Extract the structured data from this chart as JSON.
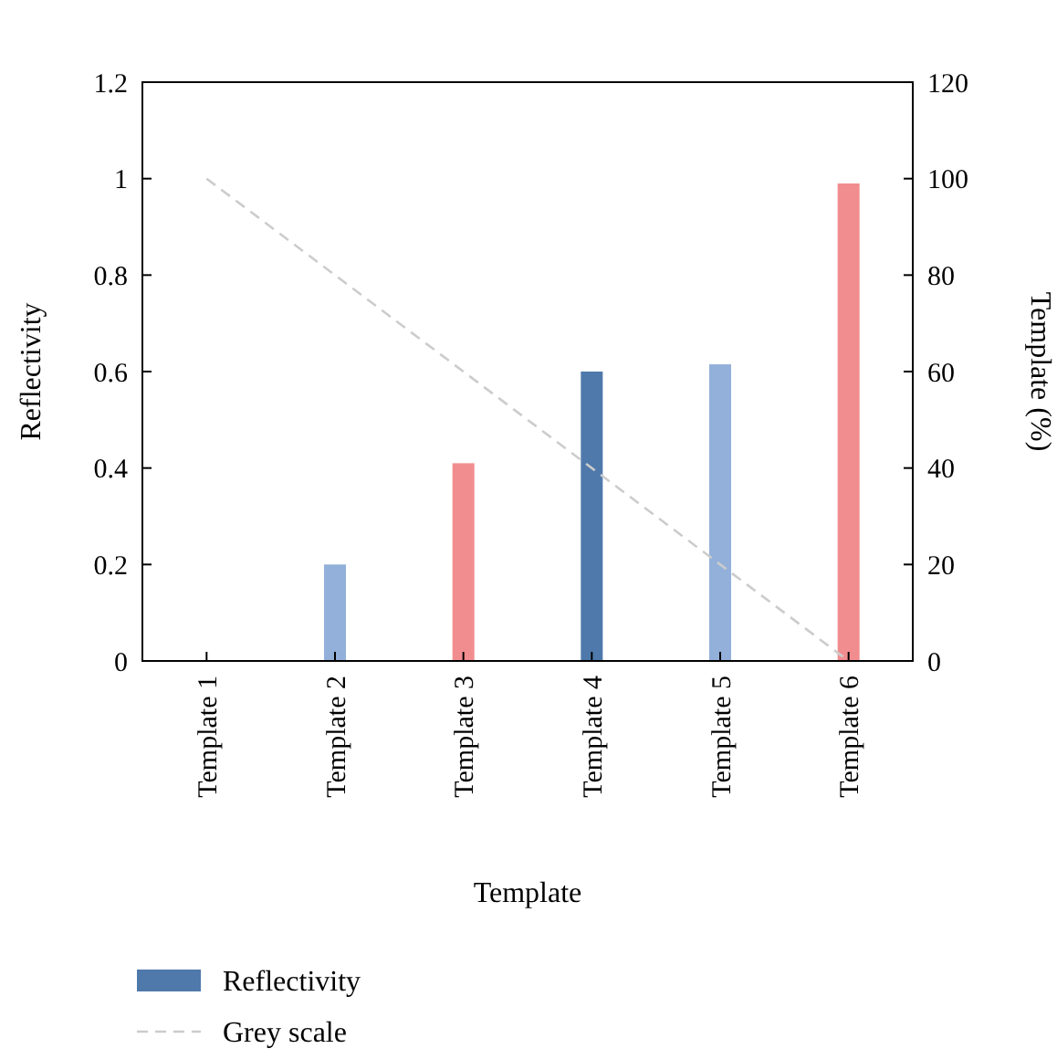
{
  "chart_data": {
    "type": "bar",
    "xlabel": "Template",
    "ylabel": "Reflectivity",
    "y2label": "Template (%)",
    "categories": [
      "Template 1",
      "Template 2",
      "Template 3",
      "Template 4",
      "Template 5",
      "Template 6"
    ],
    "series": [
      {
        "name": "Reflectivity",
        "color": "#4f79ab",
        "colors": [
          "#4f79ab",
          "#92b0d9",
          "#f28d8f",
          "#4f79ab",
          "#92b0d9",
          "#f28d8f"
        ],
        "values": [
          0,
          0.2,
          0.41,
          0.6,
          0.615,
          0.99
        ]
      },
      {
        "name": "Grey scale",
        "type": "line",
        "axis": "y2",
        "color": "#cccccc",
        "line_style": "dashed",
        "marker": "none",
        "values": [
          100,
          80,
          60,
          40,
          20,
          0
        ]
      }
    ],
    "ylim": [
      0,
      1.2
    ],
    "yticks": [
      0,
      0.2,
      0.4,
      0.6,
      0.8,
      1,
      1.2
    ],
    "y2lim": [
      0,
      120
    ],
    "y2ticks": [
      0,
      20,
      40,
      60,
      80,
      100,
      120
    ],
    "grid": false,
    "legend": "bottom"
  }
}
